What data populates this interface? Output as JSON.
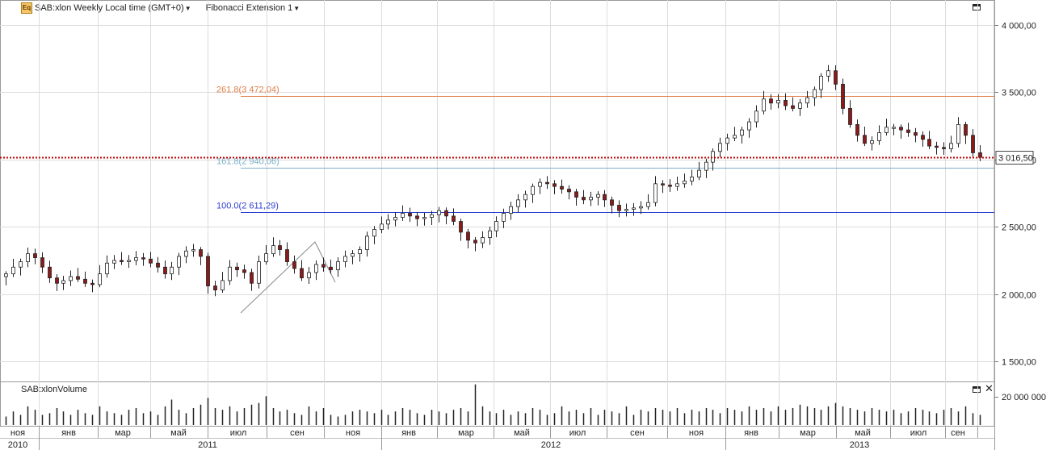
{
  "header": {
    "icon_label": "Eq",
    "instrument": "SAB:xlon Weekly Local time (GMT+0)",
    "study": "Fibonacci Extension 1"
  },
  "volume_panel": {
    "title": "SAB:xlonVolume",
    "axis_label": "20 000 000"
  },
  "price_axis": {
    "ticks": [
      {
        "label": "4 000,00",
        "value": 4000
      },
      {
        "label": "3 500,00",
        "value": 3500
      },
      {
        "label": "3 000,00",
        "value": 3000
      },
      {
        "label": "2 500,00",
        "value": 2500
      },
      {
        "label": "2 000,00",
        "value": 2000
      },
      {
        "label": "1 500,00",
        "value": 1500
      }
    ],
    "current_price_label": "3 016,50",
    "current_price": 3016.5
  },
  "fibonacci": [
    {
      "label": "261.8(3 472,04)",
      "value": 3472.04,
      "color": "#e0804a"
    },
    {
      "label": "161.8(2 940,06)",
      "value": 2940.06,
      "color": "#7ab0c8"
    },
    {
      "label": "100.0(2 611,29)",
      "value": 2611.29,
      "color": "#2f3fd0"
    }
  ],
  "time_axis": {
    "months": [
      "ноя",
      "янв",
      "мар",
      "май",
      "июл",
      "сен",
      "ноя",
      "янв",
      "мар",
      "май",
      "июл",
      "сен",
      "ноя",
      "янв",
      "мар",
      "май",
      "июл",
      "сен"
    ],
    "years": [
      "2010",
      "2011",
      "2012",
      "2013"
    ]
  },
  "colors": {
    "up": "#ffffff",
    "down": "#8b1a1a",
    "grid": "#d6d6d6",
    "price_line": "#c00000"
  },
  "chart_data": {
    "type": "candlestick",
    "title": "SAB:xlon Weekly",
    "ylim": [
      1400,
      4100
    ],
    "weekly_close_path": [
      2150,
      2200,
      2240,
      2300,
      2270,
      2200,
      2120,
      2080,
      2100,
      2130,
      2110,
      2080,
      2070,
      2150,
      2230,
      2250,
      2240,
      2250,
      2270,
      2260,
      2230,
      2200,
      2150,
      2200,
      2280,
      2320,
      2330,
      2280,
      2060,
      2030,
      2100,
      2200,
      2180,
      2160,
      2080,
      2240,
      2300,
      2360,
      2330,
      2240,
      2190,
      2120,
      2160,
      2220,
      2200,
      2180,
      2240,
      2280,
      2300,
      2330,
      2430,
      2480,
      2520,
      2550,
      2570,
      2600,
      2580,
      2560,
      2570,
      2590,
      2620,
      2580,
      2540,
      2460,
      2400,
      2380,
      2420,
      2470,
      2540,
      2600,
      2650,
      2700,
      2740,
      2800,
      2830,
      2820,
      2800,
      2780,
      2760,
      2720,
      2700,
      2720,
      2740,
      2700,
      2660,
      2620,
      2630,
      2640,
      2650,
      2680,
      2820,
      2810,
      2800,
      2820,
      2840,
      2870,
      2920,
      2980,
      3060,
      3120,
      3160,
      3180,
      3220,
      3280,
      3360,
      3450,
      3420,
      3440,
      3400,
      3380,
      3420,
      3460,
      3520,
      3620,
      3660,
      3560,
      3380,
      3260,
      3180,
      3120,
      3140,
      3200,
      3240,
      3240,
      3220,
      3200,
      3180,
      3150,
      3100,
      3090,
      3080,
      3120,
      3260,
      3180,
      3050,
      3016
    ],
    "weekly_volume_relative": [
      0.25,
      0.4,
      0.3,
      0.55,
      0.45,
      0.3,
      0.35,
      0.5,
      0.4,
      0.3,
      0.45,
      0.35,
      0.3,
      0.55,
      0.4,
      0.35,
      0.3,
      0.45,
      0.5,
      0.35,
      0.4,
      0.3,
      0.55,
      0.75,
      0.45,
      0.35,
      0.5,
      0.6,
      0.8,
      0.5,
      0.45,
      0.55,
      0.4,
      0.5,
      0.6,
      0.65,
      0.85,
      0.5,
      0.4,
      0.45,
      0.35,
      0.3,
      0.55,
      0.4,
      0.5,
      0.3,
      0.25,
      0.3,
      0.4,
      0.45,
      0.4,
      0.35,
      0.45,
      0.3,
      0.4,
      0.5,
      0.45,
      0.35,
      0.3,
      0.45,
      0.4,
      0.35,
      0.45,
      0.5,
      0.4,
      1.2,
      0.55,
      0.4,
      0.35,
      0.45,
      0.3,
      0.4,
      0.35,
      0.5,
      0.45,
      0.3,
      0.35,
      0.55,
      0.4,
      0.45,
      0.35,
      0.5,
      0.3,
      0.45,
      0.4,
      0.35,
      0.55,
      0.3,
      0.45,
      0.4,
      0.5,
      0.45,
      0.4,
      0.5,
      0.35,
      0.45,
      0.4,
      0.5,
      0.45,
      0.35,
      0.5,
      0.45,
      0.4,
      0.55,
      0.45,
      0.5,
      0.4,
      0.55,
      0.45,
      0.5,
      0.6,
      0.55,
      0.5,
      0.45,
      0.55,
      0.65,
      0.55,
      0.5,
      0.45,
      0.4,
      0.5,
      0.45,
      0.4,
      0.45,
      0.35,
      0.4,
      0.5,
      0.45,
      0.4,
      0.35,
      0.45,
      0.5,
      0.4,
      0.55,
      0.35,
      0.3
    ]
  }
}
